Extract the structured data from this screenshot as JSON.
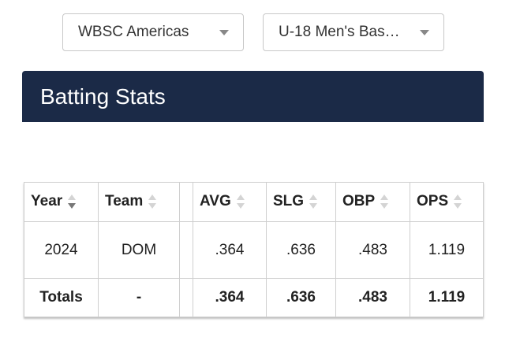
{
  "filters": [
    "WBSC Americas",
    "U-18 Men's Bas…"
  ],
  "section": {
    "title": "Batting Stats"
  },
  "table": {
    "columns": [
      "Year",
      "Team",
      "AVG",
      "SLG",
      "OBP",
      "OPS"
    ],
    "rows": [
      [
        "2024",
        "DOM",
        ".364",
        ".636",
        ".483",
        "1.119"
      ],
      [
        "Totals",
        "-",
        ".364",
        ".636",
        ".483",
        "1.119"
      ]
    ]
  }
}
